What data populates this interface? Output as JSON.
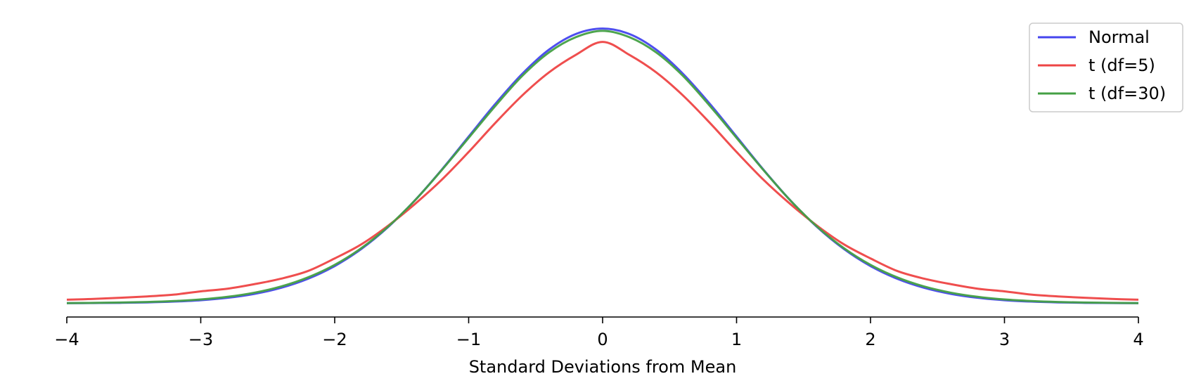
{
  "chart_data": {
    "type": "line",
    "title": "",
    "xlabel": "Standard Deviations from Mean",
    "ylabel": "",
    "xlim": [
      -4,
      4
    ],
    "ylim": [
      -0.02,
      0.42
    ],
    "grid": false,
    "legend_position": "top-right",
    "x_ticks": [
      -4,
      -3,
      -2,
      -1,
      0,
      1,
      2,
      3,
      4
    ],
    "x_tick_labels": [
      "−4",
      "−3",
      "−2",
      "−1",
      "0",
      "1",
      "2",
      "3",
      "4"
    ],
    "x": [
      -4.0,
      -3.8,
      -3.6,
      -3.4,
      -3.2,
      -3.0,
      -2.8,
      -2.6,
      -2.4,
      -2.2,
      -2.0,
      -1.8,
      -1.6,
      -1.4,
      -1.2,
      -1.0,
      -0.8,
      -0.6,
      -0.4,
      -0.2,
      0.0,
      0.2,
      0.4,
      0.6,
      0.8,
      1.0,
      1.2,
      1.4,
      1.6,
      1.8,
      2.0,
      2.2,
      2.4,
      2.6,
      2.8,
      3.0,
      3.2,
      3.4,
      3.6,
      3.8,
      4.0
    ],
    "series": [
      {
        "name": "Normal",
        "color": "#4444ee",
        "values": [
          0.0001,
          0.0003,
          0.0006,
          0.0012,
          0.0024,
          0.0044,
          0.0079,
          0.0136,
          0.0224,
          0.0355,
          0.054,
          0.079,
          0.1109,
          0.1497,
          0.1942,
          0.242,
          0.2897,
          0.3332,
          0.3683,
          0.391,
          0.3989,
          0.391,
          0.3683,
          0.3332,
          0.2897,
          0.242,
          0.1942,
          0.1497,
          0.1109,
          0.079,
          0.054,
          0.0355,
          0.0224,
          0.0136,
          0.0079,
          0.0044,
          0.0024,
          0.0012,
          0.0006,
          0.0003,
          0.0001
        ]
      },
      {
        "name": "t (df=5)",
        "color": "#ee4444",
        "values": [
          0.0051,
          0.0063,
          0.0079,
          0.0099,
          0.0125,
          0.0173,
          0.0211,
          0.0277,
          0.0357,
          0.0468,
          0.0651,
          0.0857,
          0.1128,
          0.1443,
          0.1795,
          0.2197,
          0.2621,
          0.3018,
          0.3353,
          0.3607,
          0.3796,
          0.3607,
          0.3353,
          0.3018,
          0.2621,
          0.2197,
          0.1795,
          0.1443,
          0.1128,
          0.0857,
          0.0651,
          0.0468,
          0.0357,
          0.0277,
          0.0211,
          0.0173,
          0.0125,
          0.0099,
          0.0079,
          0.0063,
          0.0051
        ]
      },
      {
        "name": "t (df=30)",
        "color": "#44a044",
        "values": [
          0.0002,
          0.0005,
          0.001,
          0.0018,
          0.0032,
          0.0055,
          0.0093,
          0.0153,
          0.0243,
          0.0375,
          0.0557,
          0.0802,
          0.1115,
          0.1496,
          0.1936,
          0.2402,
          0.2868,
          0.3302,
          0.3643,
          0.3864,
          0.3956,
          0.3864,
          0.3643,
          0.3302,
          0.2868,
          0.2402,
          0.1936,
          0.1496,
          0.1115,
          0.0802,
          0.0557,
          0.0375,
          0.0243,
          0.0153,
          0.0093,
          0.0055,
          0.0032,
          0.0018,
          0.001,
          0.0005,
          0.0002
        ]
      }
    ]
  }
}
